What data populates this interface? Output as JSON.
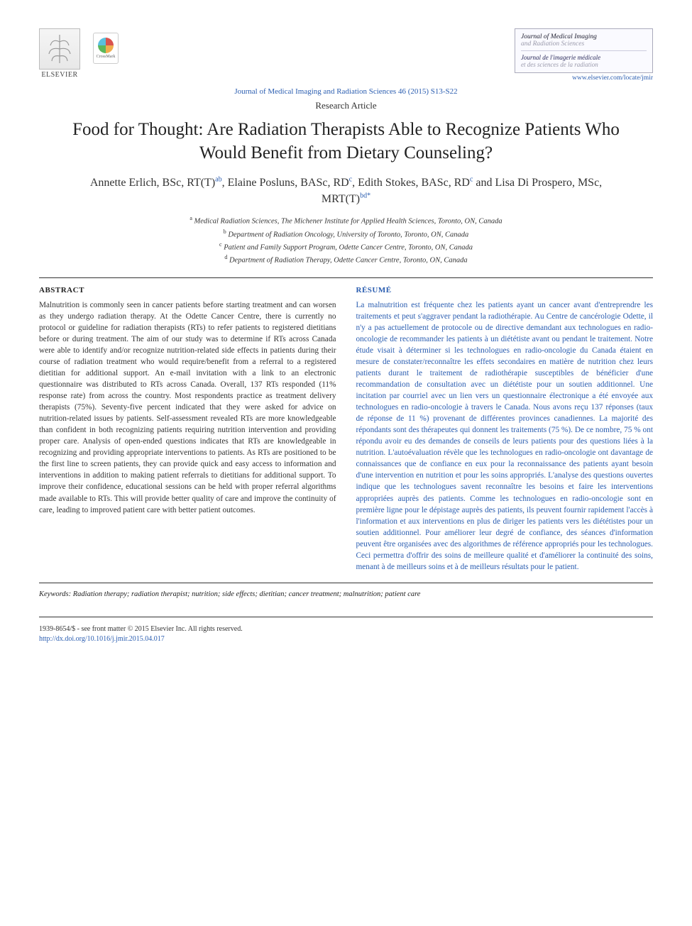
{
  "publisher_logo_label": "ELSEVIER",
  "crossmark_label": "CrossMark",
  "journal_box": {
    "title_en_l1": "Journal of Medical Imaging",
    "title_en_l2": "and Radiation Sciences",
    "title_fr_l1": "Journal de l'imagerie médicale",
    "title_fr_l2": "et des sciences de la radiation",
    "link": "www.elsevier.com/locate/jmir"
  },
  "citation": "Journal of Medical Imaging and Radiation Sciences 46 (2015) S13-S22",
  "article_type": "Research Article",
  "title": "Food for Thought: Are Radiation Therapists Able to Recognize Patients Who Would Benefit from Dietary Counseling?",
  "authors_html": "Annette Erlich, BSc, RT(T)<sup>ab</sup>, Elaine Posluns, BASc, RD<sup>c</sup>, Edith Stokes, BASc, RD<sup>c</sup> and Lisa Di Prospero, MSc, MRT(T)<sup>bd*</sup>",
  "affiliations": [
    {
      "sup": "a",
      "text": "Medical Radiation Sciences, The Michener Institute for Applied Health Sciences, Toronto, ON, Canada"
    },
    {
      "sup": "b",
      "text": "Department of Radiation Oncology, University of Toronto, Toronto, ON, Canada"
    },
    {
      "sup": "c",
      "text": "Patient and Family Support Program, Odette Cancer Centre, Toronto, ON, Canada"
    },
    {
      "sup": "d",
      "text": "Department of Radiation Therapy, Odette Cancer Centre, Toronto, ON, Canada"
    }
  ],
  "abstract_heading": "ABSTRACT",
  "abstract_text": "Malnutrition is commonly seen in cancer patients before starting treatment and can worsen as they undergo radiation therapy. At the Odette Cancer Centre, there is currently no protocol or guideline for radiation therapists (RTs) to refer patients to registered dietitians before or during treatment. The aim of our study was to determine if RTs across Canada were able to identify and/or recognize nutrition-related side effects in patients during their course of radiation treatment who would require/benefit from a referral to a registered dietitian for additional support. An e-mail invitation with a link to an electronic questionnaire was distributed to RTs across Canada. Overall, 137 RTs responded (11% response rate) from across the country. Most respondents practice as treatment delivery therapists (75%). Seventy-five percent indicated that they were asked for advice on nutrition-related issues by patients. Self-assessment revealed RTs are more knowledgeable than confident in both recognizing patients requiring nutrition intervention and providing proper care. Analysis of open-ended questions indicates that RTs are knowledgeable in recognizing and providing appropriate interventions to patients. As RTs are positioned to be the first line to screen patients, they can provide quick and easy access to information and interventions in addition to making patient referrals to dietitians for additional support. To improve their confidence, educational sessions can be held with proper referral algorithms made available to RTs. This will provide better quality of care and improve the continuity of care, leading to improved patient care with better patient outcomes.",
  "resume_heading": "RÉSUMÉ",
  "resume_text": "La malnutrition est fréquente chez les patients ayant un cancer avant d'entreprendre les traitements et peut s'aggraver pendant la radiothérapie. Au Centre de cancérologie Odette, il n'y a pas actuellement de protocole ou de directive demandant aux technologues en radio-oncologie de recommander les patients à un diététiste avant ou pendant le traitement. Notre étude visait à déterminer si les technologues en radio-oncologie du Canada étaient en mesure de constater/reconnaître les effets secondaires en matière de nutrition chez leurs patients durant le traitement de radiothérapie susceptibles de bénéficier d'une recommandation de consultation avec un diététiste pour un soutien additionnel. Une incitation par courriel avec un lien vers un questionnaire électronique a été envoyée aux technologues en radio-oncologie à travers le Canada. Nous avons reçu 137 réponses (taux de réponse de 11 %) provenant de différentes provinces canadiennes. La majorité des répondants sont des thérapeutes qui donnent les traitements (75 %). De ce nombre, 75 % ont répondu avoir eu des demandes de conseils de leurs patients pour des questions liées à la nutrition. L'autoévaluation révèle que les technologues en radio-oncologie ont davantage de connaissances que de confiance en eux pour la reconnaissance des patients ayant besoin d'une intervention en nutrition et pour les soins appropriés. L'analyse des questions ouvertes indique que les technologues savent reconnaître les besoins et faire les interventions appropriées auprès des patients. Comme les technologues en radio-oncologie sont en première ligne pour le dépistage auprès des patients, ils peuvent fournir rapidement l'accès à l'information et aux interventions en plus de diriger les patients vers les diététistes pour un soutien additionnel. Pour améliorer leur degré de confiance, des séances d'information peuvent être organisées avec des algorithmes de référence appropriés pour les technologues. Ceci permettra d'offrir des soins de meilleure qualité et d'améliorer la continuité des soins, menant à de meilleurs soins et à de meilleurs résultats pour le patient.",
  "keywords_label": "Keywords:",
  "keywords_text": " Radiation therapy; radiation therapist; nutrition; side effects; dietitian; cancer treatment; malnutrition; patient care",
  "footer": {
    "copyright": "1939-8654/$ - see front matter © 2015 Elsevier Inc. All rights reserved.",
    "doi": "http://dx.doi.org/10.1016/j.jmir.2015.04.017"
  },
  "colors": {
    "link_blue": "#2a5db0",
    "text": "#333333",
    "rule": "#333333"
  },
  "typography": {
    "body_font": "Georgia, 'Times New Roman', serif",
    "title_size_pt": 19,
    "author_size_pt": 12,
    "body_size_pt": 8.5
  }
}
